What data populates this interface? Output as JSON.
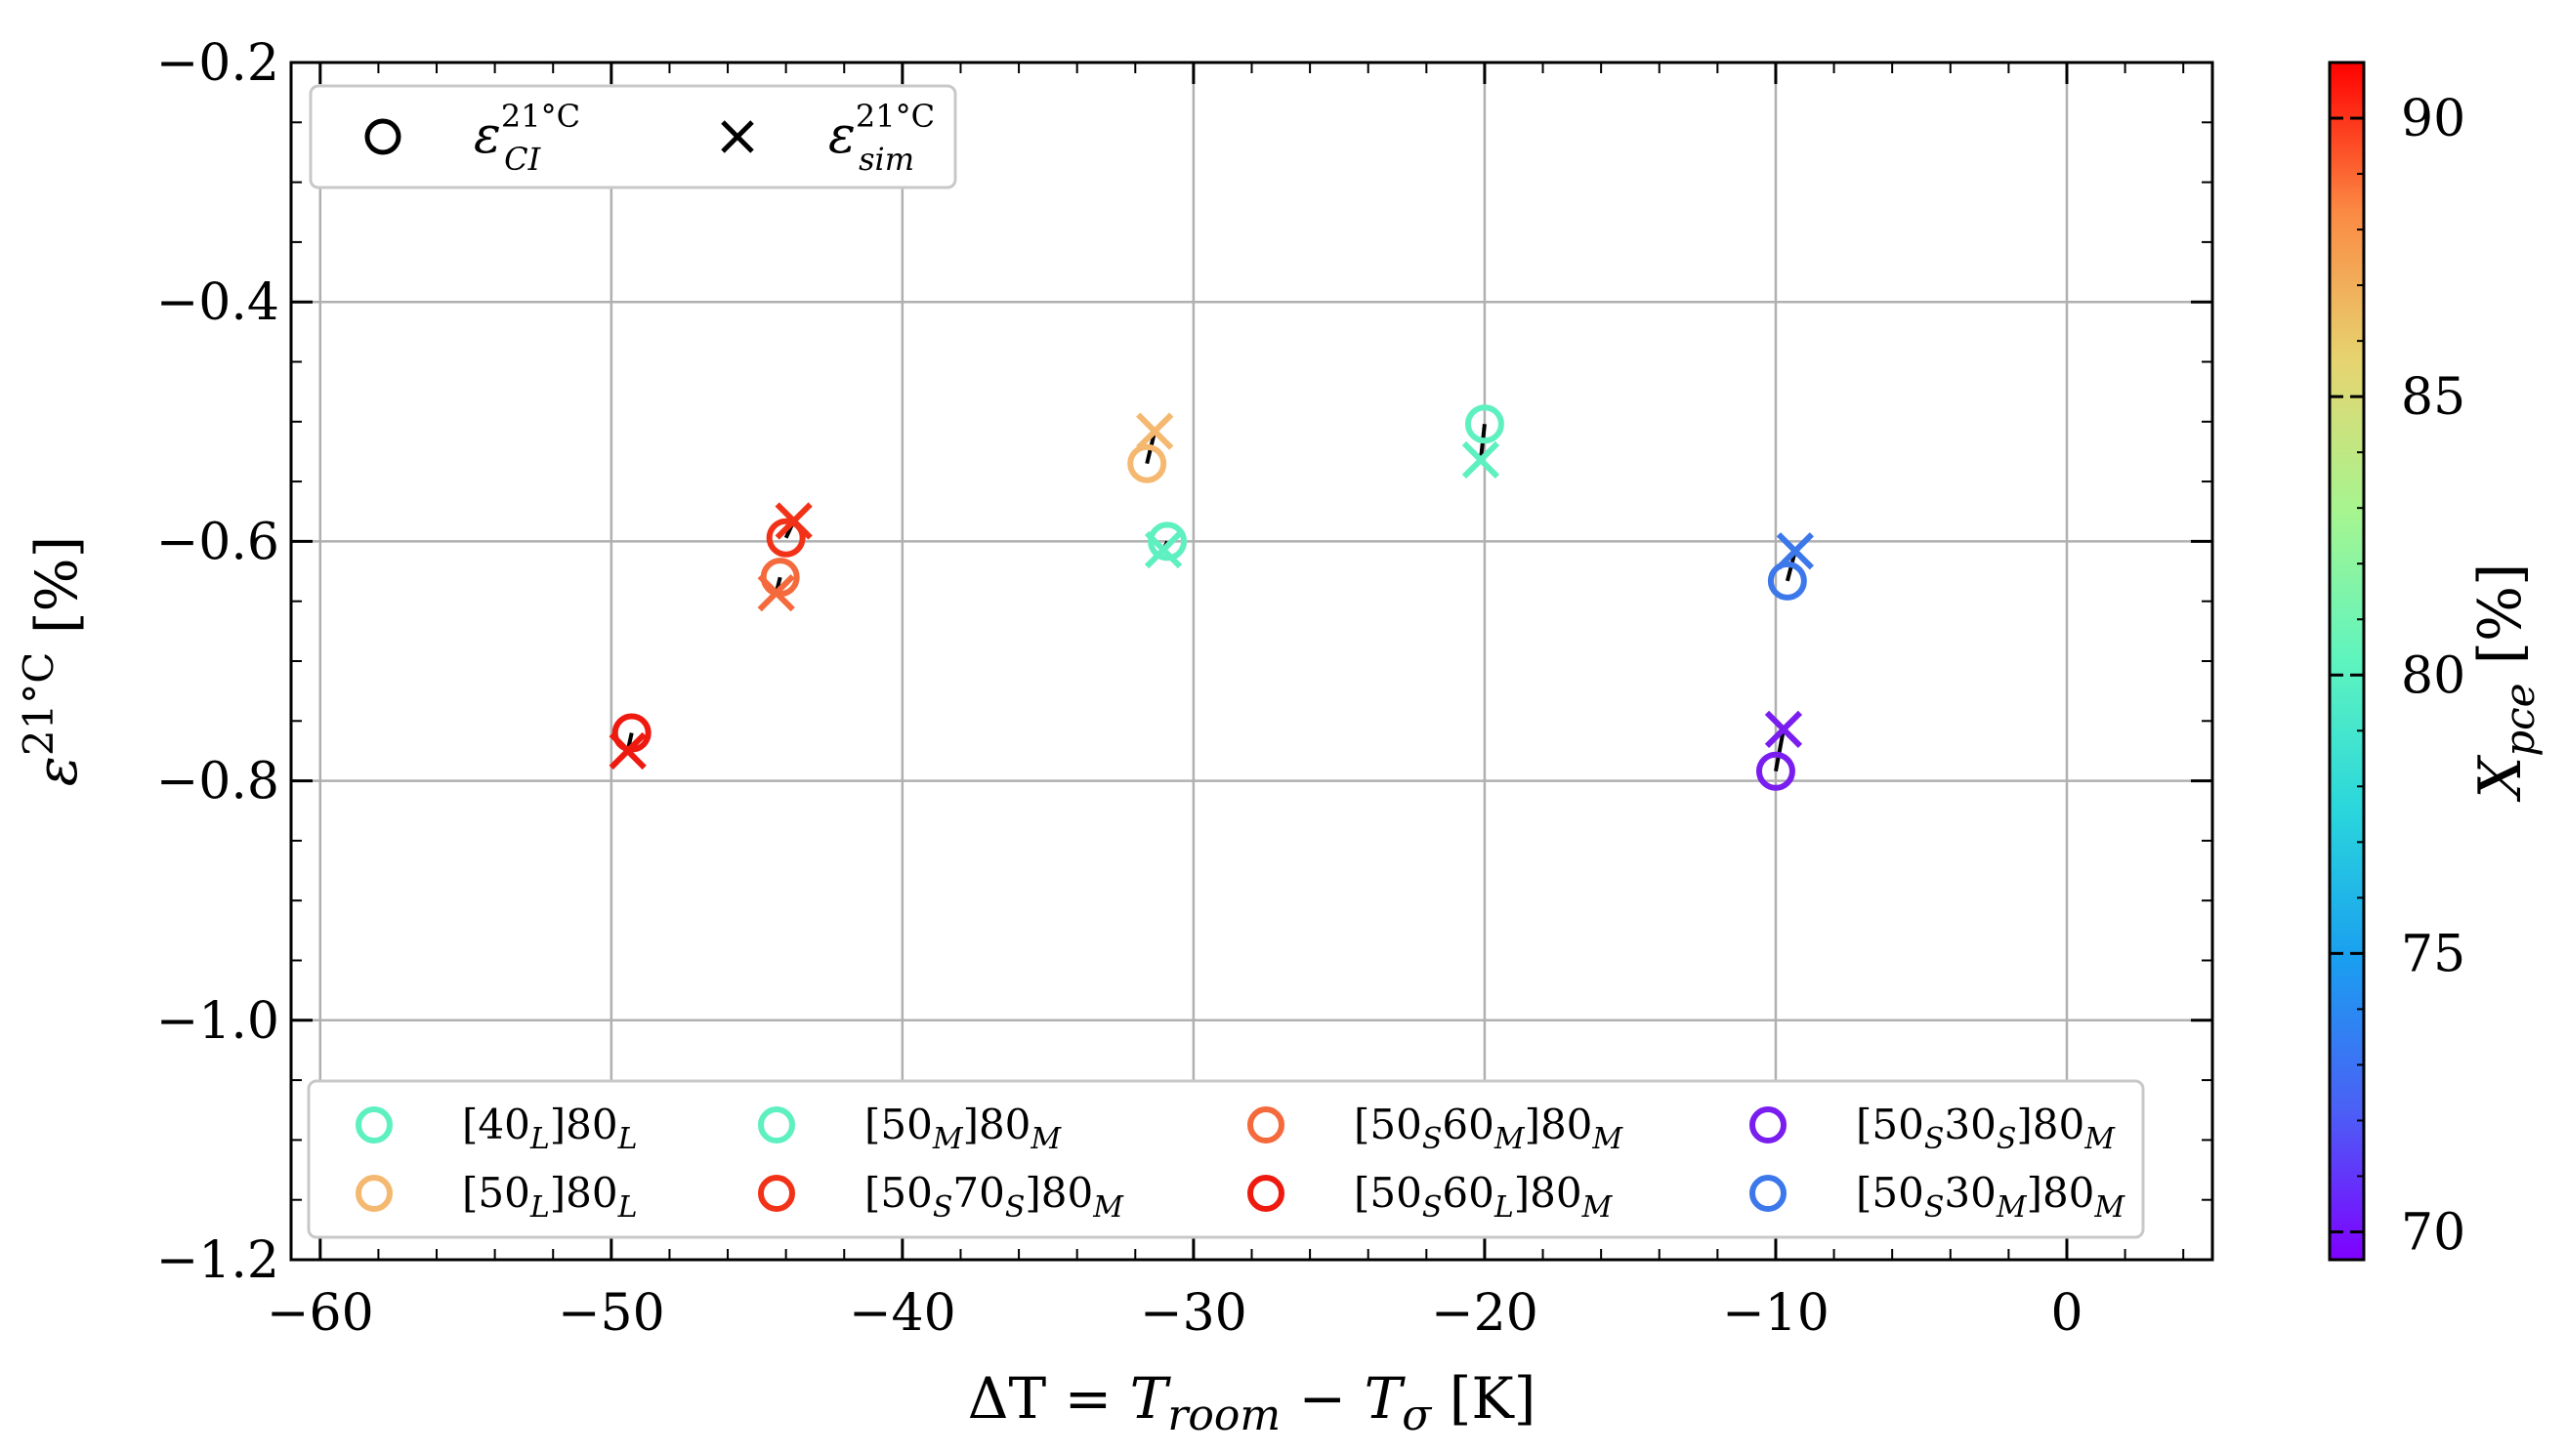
{
  "chart_data": {
    "type": "scatter",
    "xlabel": "ΔT = T_room − T_σ [K]",
    "ylabel": "ε^21°C [%]",
    "colorbar_label": "X_pce [%]",
    "xlim": [
      -61,
      5
    ],
    "ylim": [
      -1.2,
      -0.2
    ],
    "xticks": [
      -60,
      -50,
      -40,
      -30,
      -20,
      -10,
      0
    ],
    "xtick_labels": [
      "−60",
      "−50",
      "−40",
      "−30",
      "−20",
      "−10",
      "0"
    ],
    "yticks": [
      -1.2,
      -1.0,
      -0.8,
      -0.6,
      -0.4,
      -0.2
    ],
    "ytick_labels": [
      "−1.2",
      "−1.0",
      "−0.8",
      "−0.6",
      "−0.4",
      "−0.2"
    ],
    "colorbar_range": [
      69.5,
      91
    ],
    "colorbar_ticks": [
      70,
      75,
      80,
      85,
      90
    ],
    "colorbar_tick_labels": [
      "70",
      "75",
      "80",
      "85",
      "90"
    ],
    "marker_legend": [
      {
        "marker": "circle",
        "label": "ε_CI^21°C"
      },
      {
        "marker": "cross",
        "label": "ε_sim^21°C"
      }
    ],
    "series": [
      {
        "name": "[40_L]80_L",
        "color": "#5ef0c0",
        "x": -20.0,
        "ci": -0.502,
        "sim": -0.532
      },
      {
        "name": "[50_L]80_L",
        "color": "#f5b870",
        "x": -31.6,
        "ci": -0.535,
        "sim": -0.508
      },
      {
        "name": "[50_M]80_M",
        "color": "#5ef0c0",
        "x": -30.9,
        "ci": -0.6,
        "sim": -0.607
      },
      {
        "name": "[50_S70_S]80_M",
        "color": "#f23218",
        "x": -44.0,
        "ci": -0.597,
        "sim": -0.583
      },
      {
        "name": "[50_S60_M]80_M",
        "color": "#f56a3c",
        "x": -44.2,
        "ci": -0.63,
        "sim": -0.643
      },
      {
        "name": "[50_S60_L]80_M",
        "color": "#ee1a10",
        "x": -49.3,
        "ci": -0.76,
        "sim": -0.775
      },
      {
        "name": "[50_S30_S]80_M",
        "color": "#7a1ef0",
        "x": -10.0,
        "ci": -0.792,
        "sim": -0.757
      },
      {
        "name": "[50_S30_M]80_M",
        "color": "#3c78ea",
        "x": -9.6,
        "ci": -0.633,
        "sim": -0.608
      }
    ]
  }
}
